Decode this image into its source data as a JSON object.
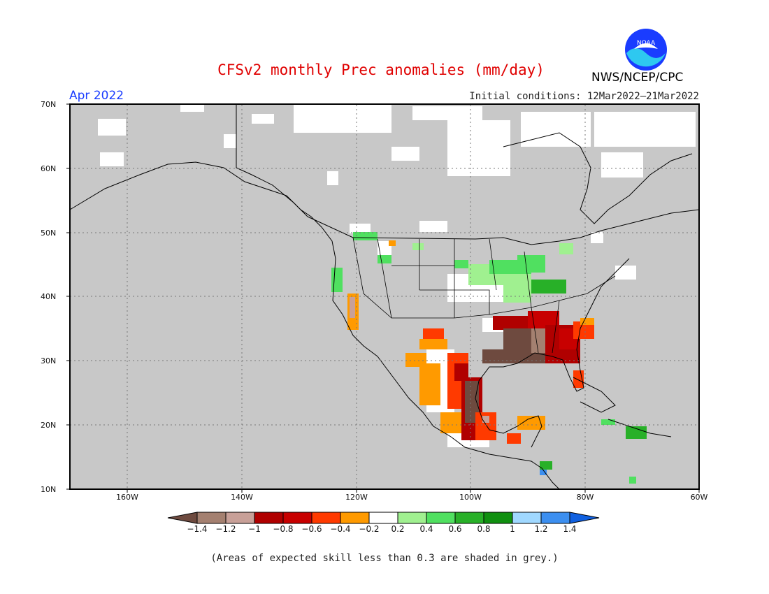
{
  "title": "CFSv2 monthly Prec anomalies (mm/day)",
  "organization": "NWS/NCEP/CPC",
  "logo_text": "NOAA",
  "month_label": "Apr 2022",
  "initial_conditions": "Initial conditions: 12Mar2022–21Mar2022",
  "lat_labels": [
    "70N",
    "60N",
    "50N",
    "40N",
    "30N",
    "20N",
    "10N"
  ],
  "lon_labels": [
    "160W",
    "140W",
    "120W",
    "100W",
    "80W",
    "60W"
  ],
  "colorbar": {
    "labels": [
      "−1.4",
      "−1.2",
      "−1",
      "−0.8",
      "−0.6",
      "−0.4",
      "−0.2",
      "0.2",
      "0.4",
      "0.6",
      "0.8",
      "1",
      "1.2",
      "1.4"
    ],
    "colors": [
      "#6e4a3f",
      "#a48070",
      "#c8a098",
      "#b00000",
      "#c80000",
      "#ff3a00",
      "#ff9a00",
      "#ffffff",
      "#a0f090",
      "#50e060",
      "#28b028",
      "#109010",
      "#a0d8ff",
      "#3c8ff0",
      "#1060e0"
    ]
  },
  "footnote": "(Areas of expected skill less than 0.3 are shaded in grey.)",
  "colors": {
    "skill_grey": "#c8c8c8",
    "title_red": "#e00000",
    "month_blue": "#1a3cff"
  }
}
